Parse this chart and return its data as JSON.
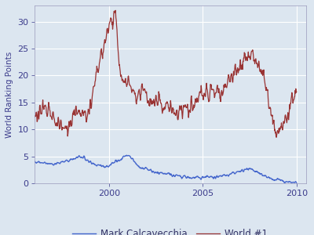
{
  "title": "",
  "ylabel": "World Ranking Points",
  "xlabel": "",
  "xlim": [
    1996.0,
    2010.5
  ],
  "ylim": [
    0,
    33
  ],
  "yticks": [
    0,
    5,
    10,
    15,
    20,
    25,
    30
  ],
  "xticks": [
    2000,
    2005,
    2010
  ],
  "background_color": "#dce6f0",
  "grid_color": "#ffffff",
  "line1_color": "#4466cc",
  "line2_color": "#993333",
  "legend_labels": [
    "Mark Calcavecchia",
    "World #1"
  ],
  "figsize": [
    4.0,
    3.0
  ],
  "dpi": 100
}
